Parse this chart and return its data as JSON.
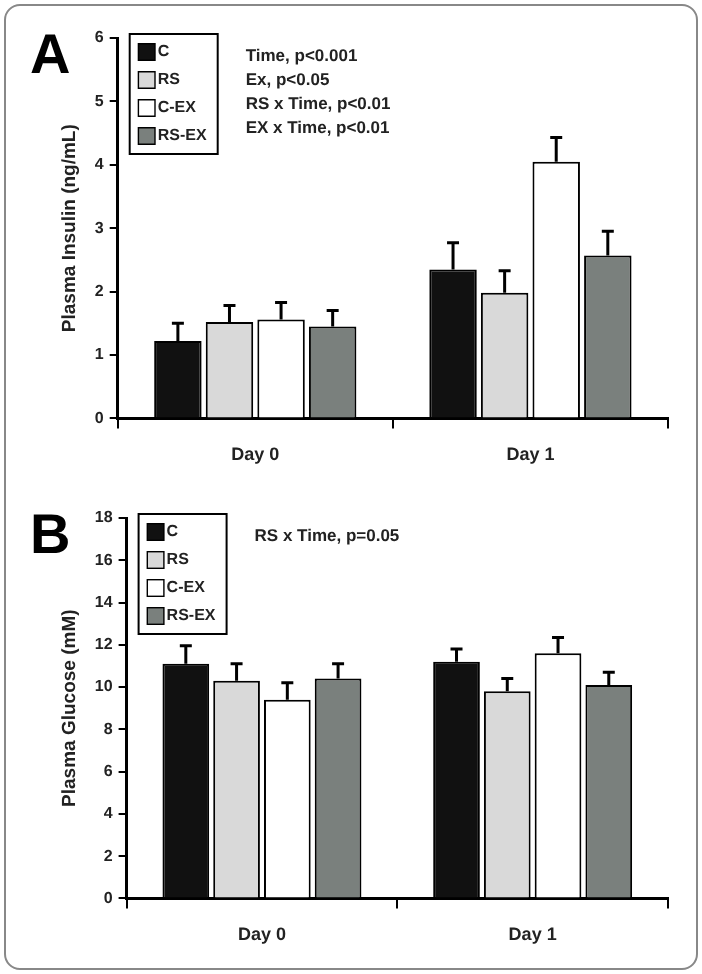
{
  "chart_data": [
    {
      "type": "bar",
      "title": "A",
      "ylabel": "Plasma Insulin (ng/mL)",
      "categories": [
        "Day 0",
        "Day 1"
      ],
      "ylim": [
        0,
        6
      ],
      "yticks": [
        0,
        1,
        2,
        3,
        4,
        5,
        6
      ],
      "grid": false,
      "legend": "top left",
      "annotations": [
        "Time, p<0.001",
        "Ex, p<0.05",
        "RS x Time, p<0.01",
        "EX x Time, p<0.01"
      ],
      "series": [
        {
          "name": "C",
          "color": "#111111",
          "values": [
            1.22,
            2.35
          ],
          "errors": [
            [
              1.22,
              1.5
            ],
            [
              2.35,
              2.77
            ]
          ]
        },
        {
          "name": "RS",
          "color": "#d9d9d9",
          "values": [
            1.52,
            1.98
          ],
          "errors": [
            [
              1.52,
              1.78
            ],
            [
              1.98,
              2.33
            ]
          ]
        },
        {
          "name": "C-EX",
          "color": "#ffffff",
          "values": [
            1.56,
            4.05
          ],
          "errors": [
            [
              1.56,
              1.83
            ],
            [
              4.05,
              4.43
            ]
          ]
        },
        {
          "name": "RS-EX",
          "color": "#7a807d",
          "values": [
            1.45,
            2.57
          ],
          "errors": [
            [
              1.45,
              1.7
            ],
            [
              2.57,
              2.95
            ]
          ]
        }
      ]
    },
    {
      "type": "bar",
      "title": "B",
      "ylabel": "Plasma Glucose (mM)",
      "categories": [
        "Day 0",
        "Day 1"
      ],
      "ylim": [
        0,
        18
      ],
      "yticks": [
        0,
        2,
        4,
        6,
        8,
        10,
        12,
        14,
        16,
        18
      ],
      "grid": false,
      "legend": "top left",
      "annotations": [
        "RS x Time, p=0.05"
      ],
      "series": [
        {
          "name": "C",
          "color": "#111111",
          "values": [
            11.1,
            11.2
          ],
          "errors": [
            [
              11.1,
              11.95
            ],
            [
              11.2,
              11.8
            ]
          ]
        },
        {
          "name": "RS",
          "color": "#d9d9d9",
          "values": [
            10.3,
            9.8
          ],
          "errors": [
            [
              10.3,
              11.1
            ],
            [
              9.8,
              10.4
            ]
          ]
        },
        {
          "name": "C-EX",
          "color": "#ffffff",
          "values": [
            9.4,
            11.6
          ],
          "errors": [
            [
              9.4,
              10.2
            ],
            [
              11.6,
              12.35
            ]
          ]
        },
        {
          "name": "RS-EX",
          "color": "#7a807d",
          "values": [
            10.4,
            10.1
          ],
          "errors": [
            [
              10.4,
              11.1
            ],
            [
              10.1,
              10.7
            ]
          ]
        }
      ]
    }
  ]
}
